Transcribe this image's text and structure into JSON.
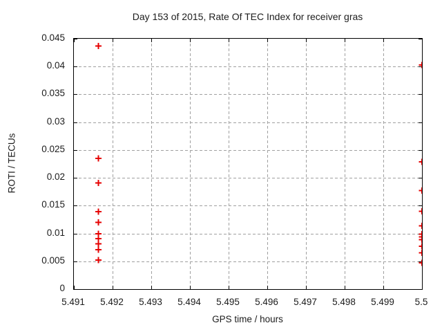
{
  "chart_data": {
    "type": "scatter",
    "title": "Day 153 of 2015, Rate Of TEC Index for receiver gras",
    "xlabel": "GPS time / hours",
    "ylabel": "ROTI / TECUs",
    "xlim": [
      5.491,
      5.5
    ],
    "ylim": [
      0,
      0.045
    ],
    "x_ticks": {
      "values": [
        5.491,
        5.492,
        5.493,
        5.494,
        5.495,
        5.496,
        5.497,
        5.498,
        5.499,
        5.5
      ],
      "labels": [
        "5.491",
        "5.492",
        "5.493",
        "5.494",
        "5.495",
        "5.496",
        "5.497",
        "5.498",
        "5.499",
        "5.5"
      ]
    },
    "y_ticks": {
      "values": [
        0,
        0.005,
        0.01,
        0.015,
        0.02,
        0.025,
        0.03,
        0.035,
        0.04,
        0.045
      ],
      "labels": [
        "0",
        "0.005",
        "0.01",
        "0.015",
        "0.02",
        "0.025",
        "0.03",
        "0.035",
        "0.04",
        "0.045"
      ]
    },
    "grid": {
      "show": true,
      "style": "dashed",
      "color": "#9f9f9f"
    },
    "border_color": "#000000",
    "marker": {
      "shape": "plus",
      "color": "#e60000",
      "size": 9,
      "stroke_width": 2
    },
    "legend": "none",
    "series": [
      {
        "name": "ROTI",
        "points": [
          [
            5.49163,
            0.0437
          ],
          [
            5.49163,
            0.0235
          ],
          [
            5.49163,
            0.0191
          ],
          [
            5.49163,
            0.0139
          ],
          [
            5.49163,
            0.012
          ],
          [
            5.49163,
            0.00995
          ],
          [
            5.49163,
            0.0091
          ],
          [
            5.49163,
            0.00815
          ],
          [
            5.49163,
            0.0071
          ],
          [
            5.49163,
            0.0052
          ],
          [
            5.5,
            0.0403
          ],
          [
            5.5,
            0.0229
          ],
          [
            5.5,
            0.0177
          ],
          [
            5.5,
            0.014
          ],
          [
            5.5,
            0.0114
          ],
          [
            5.5,
            0.0099
          ],
          [
            5.5,
            0.0094
          ],
          [
            5.5,
            0.0089
          ],
          [
            5.5,
            0.0077
          ],
          [
            5.5,
            0.0065
          ],
          [
            5.5,
            0.0047
          ]
        ]
      }
    ]
  }
}
